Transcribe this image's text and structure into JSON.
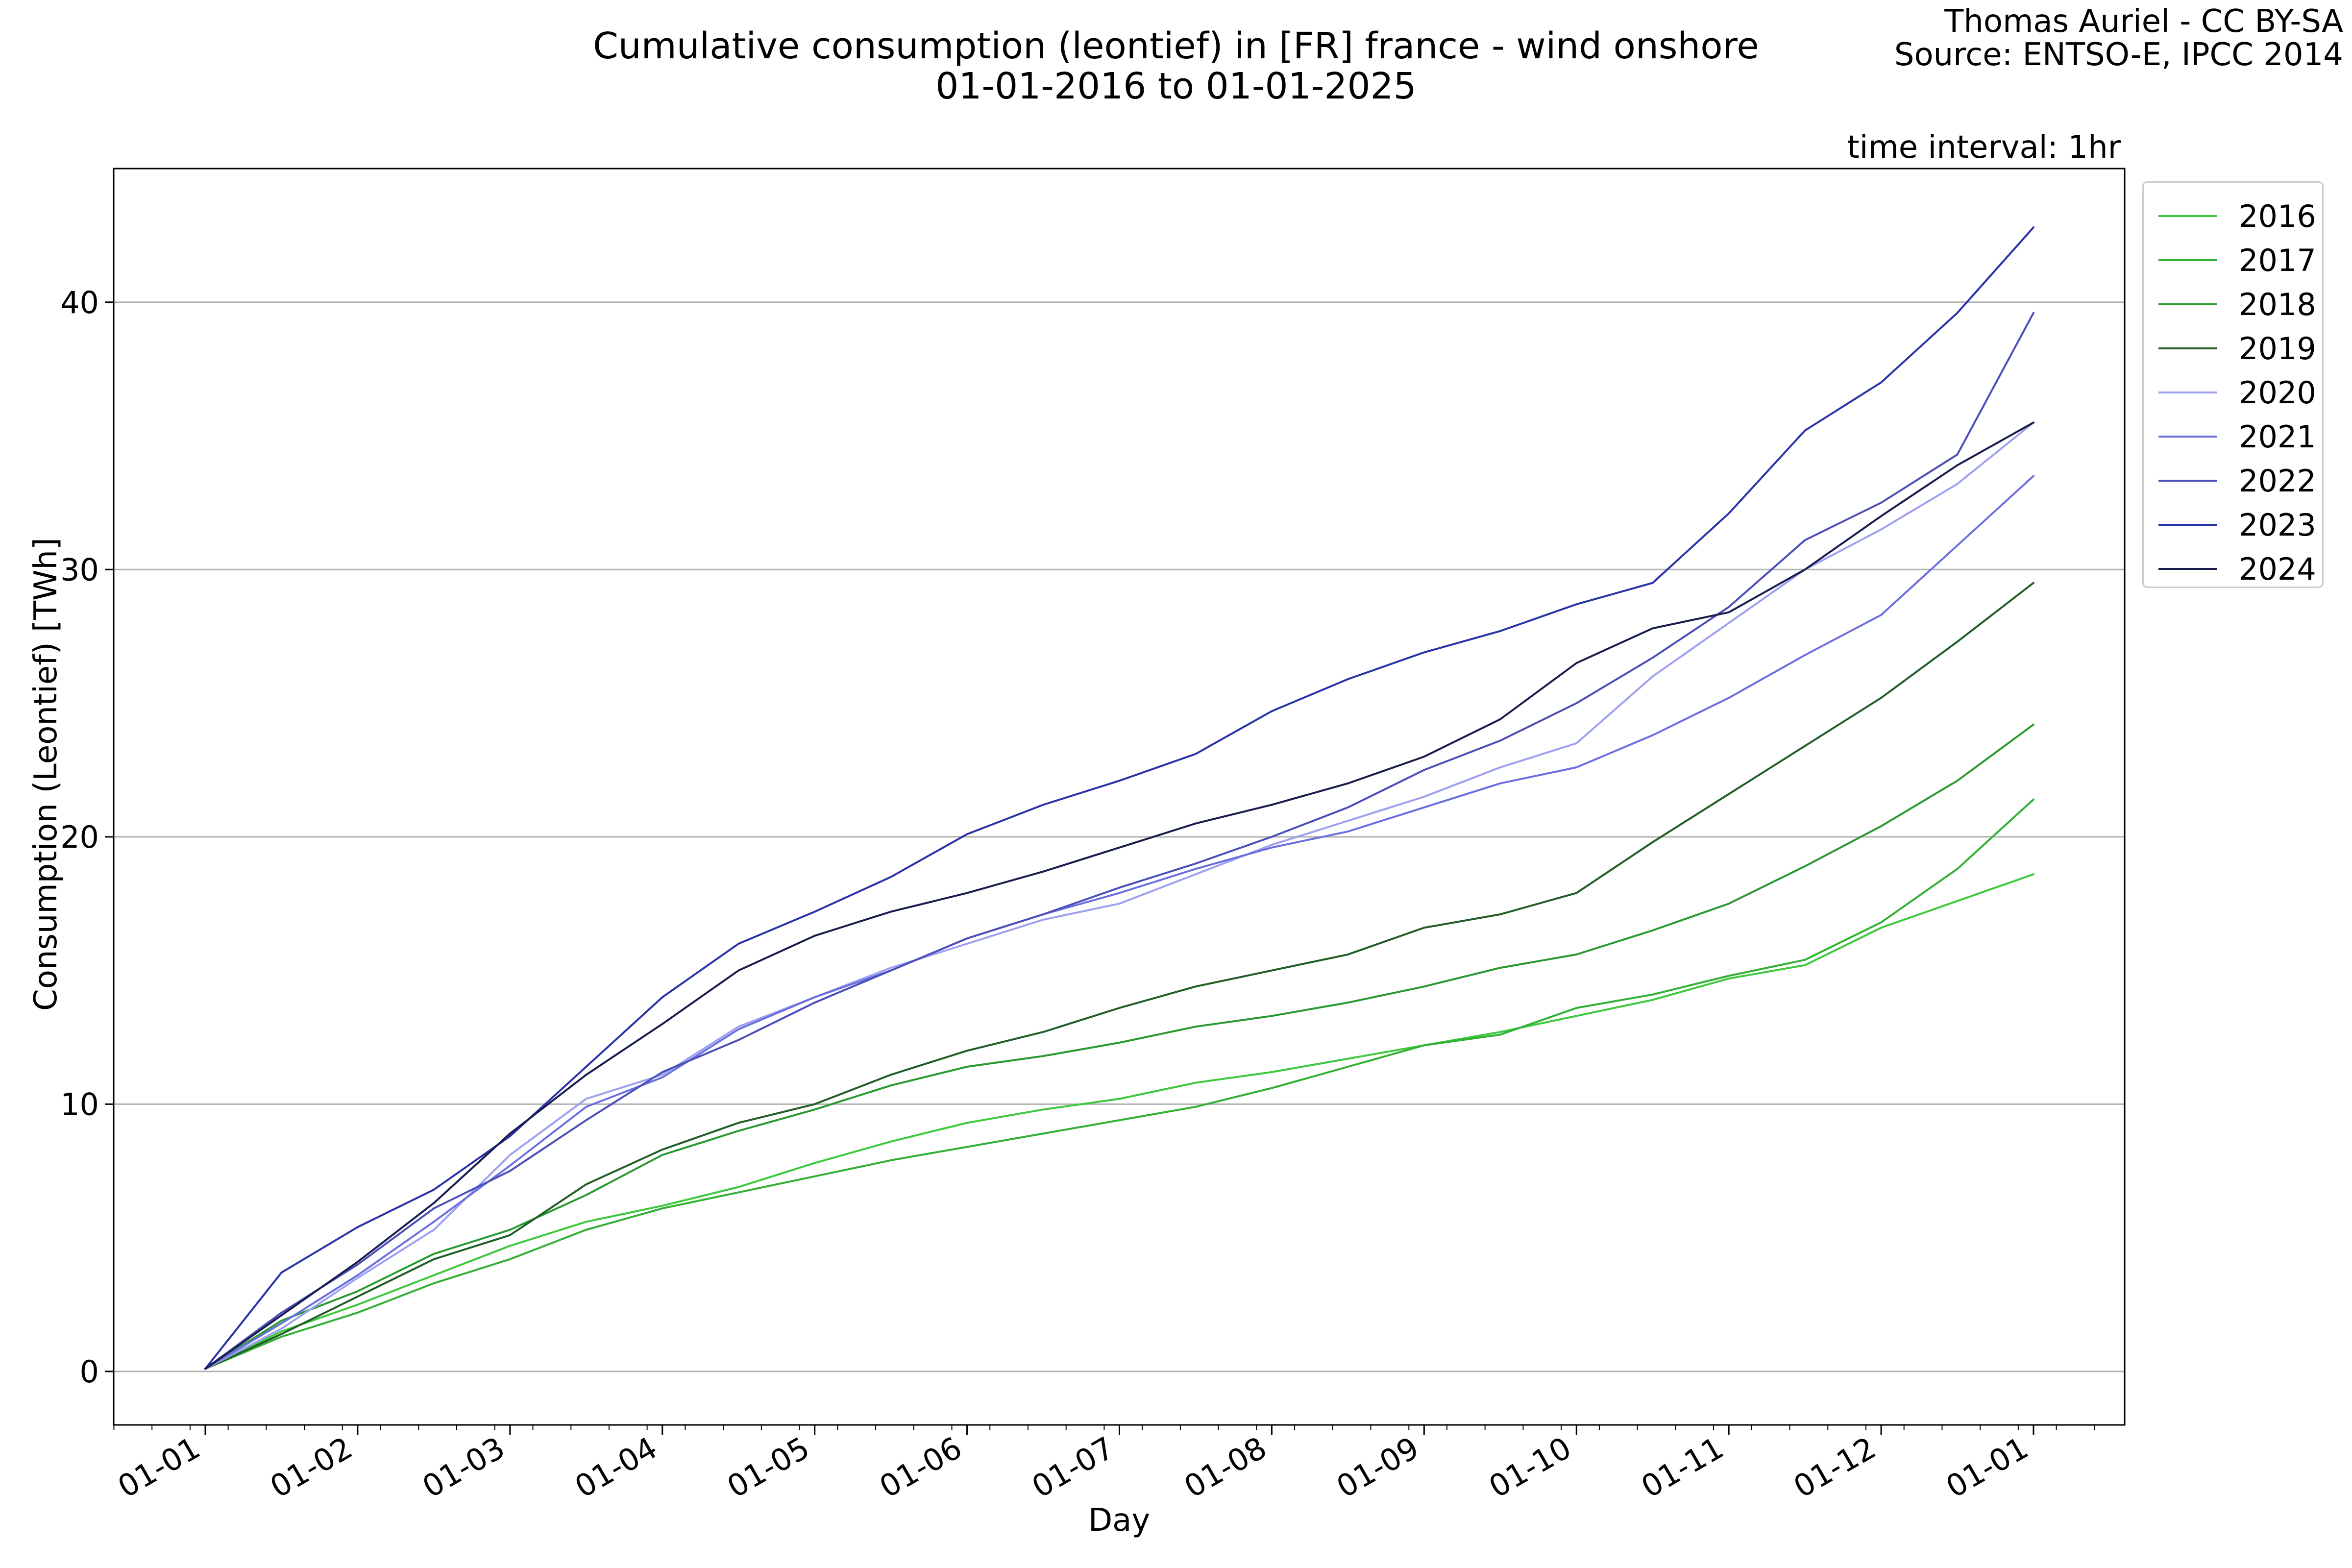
{
  "chart_data": {
    "type": "line",
    "title": "Cumulative consumption (leontief) in [FR] france - wind onshore",
    "subtitle": "01-01-2016 to 01-01-2025",
    "credit": [
      "Thomas Auriel - CC BY-SA",
      "Source: ENTSO-E, IPCC 2014"
    ],
    "annotation": "time interval: 1hr",
    "xlabel": "Day",
    "ylabel": "Consumption (Leontief) [TWh]",
    "x_ticks": [
      "01-01",
      "01-02",
      "01-03",
      "01-04",
      "01-05",
      "01-06",
      "01-07",
      "01-08",
      "01-09",
      "01-10",
      "01-11",
      "01-12",
      "01-01"
    ],
    "y_ticks": [
      0,
      10,
      20,
      30,
      40
    ],
    "ylim": [
      -2,
      45
    ],
    "grid": "horizontal",
    "legend_position": "upper-right-outside",
    "x_unit": "month index (0 = 01-01, 12 = next 01-01)",
    "x": [
      0,
      0.5,
      1,
      1.5,
      2,
      2.5,
      3,
      3.5,
      4,
      4.5,
      5,
      5.5,
      6,
      6.5,
      7,
      7.5,
      8,
      8.5,
      9,
      9.5,
      10,
      10.5,
      11,
      11.5,
      12
    ],
    "series": [
      {
        "name": "2016",
        "color": "#3ec93e",
        "values": [
          0.1,
          1.5,
          2.5,
          3.6,
          4.7,
          5.6,
          6.2,
          6.9,
          7.8,
          8.6,
          9.3,
          9.8,
          10.2,
          10.8,
          11.2,
          11.7,
          12.2,
          12.7,
          13.3,
          13.9,
          14.7,
          15.2,
          16.6,
          17.6,
          18.6
        ]
      },
      {
        "name": "2017",
        "color": "#33b035",
        "values": [
          0.1,
          1.3,
          2.2,
          3.3,
          4.2,
          5.3,
          6.1,
          6.7,
          7.3,
          7.9,
          8.4,
          8.9,
          9.4,
          9.9,
          10.6,
          11.4,
          12.2,
          12.6,
          13.6,
          14.1,
          14.8,
          15.4,
          16.8,
          18.8,
          21.4
        ]
      },
      {
        "name": "2018",
        "color": "#2a9a30",
        "values": [
          0.1,
          1.9,
          3.0,
          4.4,
          5.3,
          6.6,
          8.1,
          9.0,
          9.8,
          10.7,
          11.4,
          11.8,
          12.3,
          12.9,
          13.3,
          13.8,
          14.4,
          15.1,
          15.6,
          16.5,
          17.5,
          18.9,
          20.4,
          22.1,
          24.2
        ]
      },
      {
        "name": "2019",
        "color": "#215e27",
        "values": [
          0.1,
          1.4,
          2.8,
          4.2,
          5.1,
          7.0,
          8.3,
          9.3,
          10.0,
          11.1,
          12.0,
          12.7,
          13.6,
          14.4,
          15.0,
          15.6,
          16.6,
          17.1,
          17.9,
          19.8,
          21.6,
          23.4,
          25.2,
          27.3,
          29.5
        ]
      },
      {
        "name": "2020",
        "color": "#9ea0f0",
        "values": [
          0.1,
          1.6,
          3.5,
          5.3,
          8.1,
          10.2,
          11.1,
          12.9,
          14.0,
          15.1,
          16.0,
          16.9,
          17.5,
          18.6,
          19.7,
          20.6,
          21.5,
          22.6,
          23.5,
          26.0,
          28.0,
          30.0,
          31.5,
          33.2,
          35.5
        ]
      },
      {
        "name": "2021",
        "color": "#6b6fe0",
        "values": [
          0.1,
          1.8,
          3.6,
          5.6,
          7.7,
          9.9,
          11.0,
          12.8,
          14.0,
          15.0,
          16.2,
          17.1,
          17.9,
          18.8,
          19.6,
          20.2,
          21.1,
          22.0,
          22.6,
          23.8,
          25.2,
          26.8,
          28.3,
          30.9,
          33.5
        ]
      },
      {
        "name": "2022",
        "color": "#4b4fb8",
        "values": [
          0.1,
          2.2,
          4.0,
          6.1,
          7.5,
          9.4,
          11.2,
          12.4,
          13.8,
          15.0,
          16.2,
          17.1,
          18.1,
          19.0,
          20.0,
          21.1,
          22.5,
          23.6,
          25.0,
          26.7,
          28.6,
          31.1,
          32.5,
          34.3,
          39.6
        ]
      },
      {
        "name": "2023",
        "color": "#2a33a8",
        "values": [
          0.1,
          3.7,
          5.4,
          6.8,
          8.8,
          11.4,
          14.0,
          16.0,
          17.2,
          18.5,
          20.1,
          21.2,
          22.1,
          23.1,
          24.7,
          25.9,
          26.9,
          27.7,
          28.7,
          29.5,
          32.1,
          35.2,
          37.0,
          39.6,
          42.8
        ]
      },
      {
        "name": "2024",
        "color": "#191d4e",
        "values": [
          0.1,
          2.1,
          4.1,
          6.3,
          8.9,
          11.1,
          13.0,
          15.0,
          16.3,
          17.2,
          17.9,
          18.7,
          19.6,
          20.5,
          21.2,
          22.0,
          23.0,
          24.4,
          26.5,
          27.8,
          28.4,
          30.0,
          32.0,
          33.9,
          35.5
        ]
      }
    ]
  }
}
